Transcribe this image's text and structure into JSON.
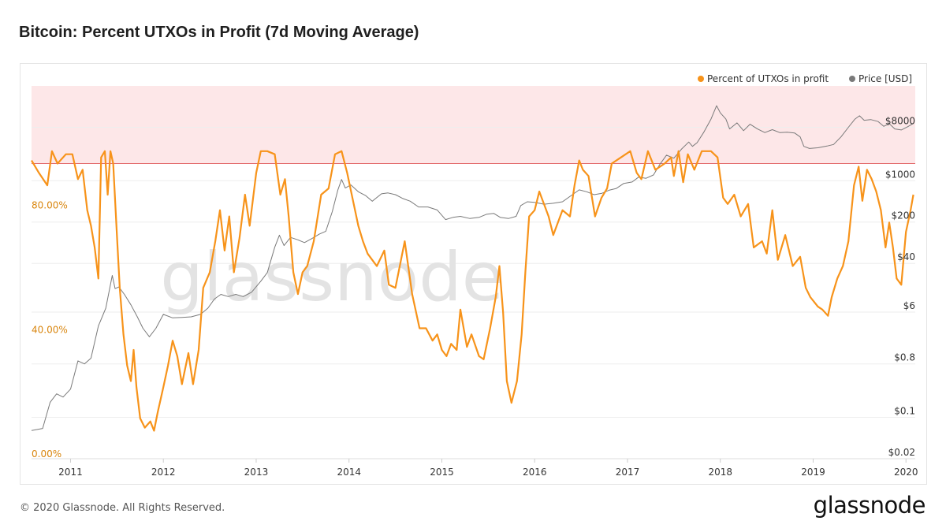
{
  "title": "Bitcoin: Percent UTXOs in Profit (7d Moving Average)",
  "footer": "© 2020 Glassnode. All Rights Reserved.",
  "brand": "glassnode",
  "watermark": "glassnode",
  "colors": {
    "profit": "#f7931a",
    "price": "#7a7a7a",
    "zone": "#fde7e8",
    "zone_line": "#e36a6a",
    "left_axis": "#d9860f",
    "grid": "#eeeeee"
  },
  "chart_data": {
    "type": "line",
    "title": "Bitcoin: Percent UTXOs in Profit (7d Moving Average)",
    "legend_position": "top-right",
    "grid": true,
    "x_ticks": [
      "2011",
      "2012",
      "2013",
      "2014",
      "2015",
      "2016",
      "2017",
      "2018",
      "2019",
      "2020"
    ],
    "x_range": [
      2010.58,
      2020.1
    ],
    "y_left": {
      "ticks": [
        "0.00%",
        "40.00%",
        "80.00%"
      ],
      "tick_values": [
        0,
        40,
        80
      ],
      "range": [
        0,
        120
      ]
    },
    "y_right": {
      "scale": "log",
      "ticks": [
        "$0.02",
        "$0.1",
        "$0.8",
        "$6",
        "$40",
        "$200",
        "$1000",
        "$8000"
      ],
      "tick_values": [
        0.02,
        0.1,
        0.8,
        6,
        40,
        200,
        1000,
        8000
      ],
      "range": [
        0.02,
        40000
      ]
    },
    "highlight_zone": {
      "axis": "left",
      "from": 95,
      "to": 120
    },
    "series": [
      {
        "name": "Percent of UTXOs in profit",
        "axis": "left",
        "points": [
          [
            2010.58,
            96
          ],
          [
            2010.66,
            92
          ],
          [
            2010.75,
            88
          ],
          [
            2010.8,
            99
          ],
          [
            2010.86,
            95
          ],
          [
            2010.95,
            98
          ],
          [
            2011.02,
            98
          ],
          [
            2011.08,
            90
          ],
          [
            2011.13,
            93
          ],
          [
            2011.18,
            80
          ],
          [
            2011.22,
            75
          ],
          [
            2011.26,
            68
          ],
          [
            2011.3,
            58
          ],
          [
            2011.33,
            97
          ],
          [
            2011.37,
            99
          ],
          [
            2011.4,
            85
          ],
          [
            2011.43,
            99
          ],
          [
            2011.46,
            95
          ],
          [
            2011.5,
            72
          ],
          [
            2011.53,
            55
          ],
          [
            2011.57,
            40
          ],
          [
            2011.61,
            30
          ],
          [
            2011.65,
            25
          ],
          [
            2011.68,
            35
          ],
          [
            2011.71,
            23
          ],
          [
            2011.75,
            13
          ],
          [
            2011.8,
            10
          ],
          [
            2011.86,
            12
          ],
          [
            2011.9,
            9
          ],
          [
            2011.94,
            15
          ],
          [
            2012.0,
            23
          ],
          [
            2012.05,
            30
          ],
          [
            2012.1,
            38
          ],
          [
            2012.15,
            33
          ],
          [
            2012.2,
            24
          ],
          [
            2012.27,
            34
          ],
          [
            2012.32,
            24
          ],
          [
            2012.38,
            35
          ],
          [
            2012.43,
            55
          ],
          [
            2012.5,
            60
          ],
          [
            2012.56,
            70
          ],
          [
            2012.61,
            80
          ],
          [
            2012.66,
            67
          ],
          [
            2012.71,
            78
          ],
          [
            2012.76,
            60
          ],
          [
            2012.82,
            71
          ],
          [
            2012.88,
            85
          ],
          [
            2012.93,
            75
          ],
          [
            2013.0,
            92
          ],
          [
            2013.05,
            99
          ],
          [
            2013.12,
            99
          ],
          [
            2013.2,
            98
          ],
          [
            2013.26,
            85
          ],
          [
            2013.31,
            90
          ],
          [
            2013.35,
            78
          ],
          [
            2013.4,
            60
          ],
          [
            2013.45,
            53
          ],
          [
            2013.5,
            60
          ],
          [
            2013.55,
            62
          ],
          [
            2013.62,
            70
          ],
          [
            2013.7,
            85
          ],
          [
            2013.78,
            87
          ],
          [
            2013.85,
            98
          ],
          [
            2013.92,
            99
          ],
          [
            2013.98,
            92
          ],
          [
            2014.03,
            85
          ],
          [
            2014.1,
            75
          ],
          [
            2014.15,
            70
          ],
          [
            2014.2,
            66
          ],
          [
            2014.3,
            62
          ],
          [
            2014.38,
            67
          ],
          [
            2014.43,
            56
          ],
          [
            2014.5,
            55
          ],
          [
            2014.6,
            70
          ],
          [
            2014.68,
            53
          ],
          [
            2014.76,
            42
          ],
          [
            2014.83,
            42
          ],
          [
            2014.9,
            38
          ],
          [
            2014.95,
            40
          ],
          [
            2015.0,
            35
          ],
          [
            2015.05,
            33
          ],
          [
            2015.1,
            37
          ],
          [
            2015.16,
            35
          ],
          [
            2015.2,
            48
          ],
          [
            2015.27,
            36
          ],
          [
            2015.32,
            40
          ],
          [
            2015.4,
            33
          ],
          [
            2015.45,
            32
          ],
          [
            2015.52,
            42
          ],
          [
            2015.58,
            52
          ],
          [
            2015.62,
            62
          ],
          [
            2015.66,
            47
          ],
          [
            2015.7,
            25
          ],
          [
            2015.75,
            18
          ],
          [
            2015.81,
            25
          ],
          [
            2015.86,
            40
          ],
          [
            2015.9,
            60
          ],
          [
            2015.94,
            78
          ],
          [
            2016.0,
            80
          ],
          [
            2016.05,
            86
          ],
          [
            2016.1,
            82
          ],
          [
            2016.15,
            78
          ],
          [
            2016.2,
            72
          ],
          [
            2016.3,
            80
          ],
          [
            2016.38,
            78
          ],
          [
            2016.43,
            88
          ],
          [
            2016.48,
            96
          ],
          [
            2016.52,
            93
          ],
          [
            2016.58,
            91
          ],
          [
            2016.65,
            78
          ],
          [
            2016.72,
            84
          ],
          [
            2016.78,
            87
          ],
          [
            2016.83,
            95
          ],
          [
            2016.93,
            97
          ],
          [
            2017.03,
            99
          ],
          [
            2017.1,
            92
          ],
          [
            2017.15,
            90
          ],
          [
            2017.22,
            99
          ],
          [
            2017.3,
            93
          ],
          [
            2017.4,
            95
          ],
          [
            2017.47,
            97
          ],
          [
            2017.5,
            91
          ],
          [
            2017.55,
            99
          ],
          [
            2017.6,
            89
          ],
          [
            2017.65,
            98
          ],
          [
            2017.72,
            93
          ],
          [
            2017.8,
            99
          ],
          [
            2017.9,
            99
          ],
          [
            2017.97,
            97
          ],
          [
            2018.03,
            84
          ],
          [
            2018.08,
            82
          ],
          [
            2018.15,
            85
          ],
          [
            2018.22,
            78
          ],
          [
            2018.3,
            82
          ],
          [
            2018.36,
            68
          ],
          [
            2018.45,
            70
          ],
          [
            2018.5,
            66
          ],
          [
            2018.56,
            80
          ],
          [
            2018.62,
            64
          ],
          [
            2018.7,
            72
          ],
          [
            2018.78,
            62
          ],
          [
            2018.86,
            65
          ],
          [
            2018.92,
            55
          ],
          [
            2018.97,
            52
          ],
          [
            2019.05,
            49
          ],
          [
            2019.1,
            48
          ],
          [
            2019.16,
            46
          ],
          [
            2019.2,
            52
          ],
          [
            2019.26,
            58
          ],
          [
            2019.32,
            62
          ],
          [
            2019.38,
            70
          ],
          [
            2019.44,
            88
          ],
          [
            2019.49,
            94
          ],
          [
            2019.53,
            83
          ],
          [
            2019.58,
            93
          ],
          [
            2019.63,
            90
          ],
          [
            2019.68,
            86
          ],
          [
            2019.73,
            80
          ],
          [
            2019.78,
            68
          ],
          [
            2019.82,
            76
          ],
          [
            2019.86,
            68
          ],
          [
            2019.9,
            58
          ],
          [
            2019.95,
            56
          ],
          [
            2020.0,
            73
          ],
          [
            2020.05,
            80
          ],
          [
            2020.08,
            85
          ]
        ]
      },
      {
        "name": "Price [USD]",
        "axis": "right",
        "points": [
          [
            2010.58,
            0.06
          ],
          [
            2010.7,
            0.065
          ],
          [
            2010.78,
            0.18
          ],
          [
            2010.85,
            0.25
          ],
          [
            2010.92,
            0.22
          ],
          [
            2011.0,
            0.3
          ],
          [
            2011.08,
            0.9
          ],
          [
            2011.15,
            0.8
          ],
          [
            2011.22,
            1.0
          ],
          [
            2011.3,
            3.5
          ],
          [
            2011.38,
            7.0
          ],
          [
            2011.45,
            25
          ],
          [
            2011.48,
            15
          ],
          [
            2011.52,
            16
          ],
          [
            2011.58,
            12
          ],
          [
            2011.65,
            8
          ],
          [
            2011.72,
            5
          ],
          [
            2011.78,
            3.2
          ],
          [
            2011.85,
            2.3
          ],
          [
            2011.92,
            3.2
          ],
          [
            2012.0,
            5.5
          ],
          [
            2012.1,
            4.8
          ],
          [
            2012.2,
            4.9
          ],
          [
            2012.3,
            5.0
          ],
          [
            2012.4,
            5.5
          ],
          [
            2012.48,
            7.0
          ],
          [
            2012.55,
            10
          ],
          [
            2012.62,
            12
          ],
          [
            2012.7,
            11
          ],
          [
            2012.78,
            12
          ],
          [
            2012.86,
            11
          ],
          [
            2012.95,
            13
          ],
          [
            2013.05,
            20
          ],
          [
            2013.12,
            28
          ],
          [
            2013.2,
            75
          ],
          [
            2013.25,
            120
          ],
          [
            2013.3,
            80
          ],
          [
            2013.37,
            110
          ],
          [
            2013.45,
            100
          ],
          [
            2013.52,
            90
          ],
          [
            2013.6,
            105
          ],
          [
            2013.68,
            125
          ],
          [
            2013.75,
            140
          ],
          [
            2013.82,
            300
          ],
          [
            2013.88,
            700
          ],
          [
            2013.92,
            1050
          ],
          [
            2013.96,
            750
          ],
          [
            2014.02,
            850
          ],
          [
            2014.1,
            650
          ],
          [
            2014.18,
            560
          ],
          [
            2014.25,
            450
          ],
          [
            2014.35,
            600
          ],
          [
            2014.42,
            620
          ],
          [
            2014.5,
            580
          ],
          [
            2014.58,
            500
          ],
          [
            2014.66,
            450
          ],
          [
            2014.75,
            360
          ],
          [
            2014.85,
            360
          ],
          [
            2014.95,
            320
          ],
          [
            2015.04,
            220
          ],
          [
            2015.12,
            240
          ],
          [
            2015.2,
            250
          ],
          [
            2015.3,
            230
          ],
          [
            2015.4,
            240
          ],
          [
            2015.48,
            270
          ],
          [
            2015.56,
            280
          ],
          [
            2015.63,
            240
          ],
          [
            2015.72,
            230
          ],
          [
            2015.8,
            250
          ],
          [
            2015.85,
            380
          ],
          [
            2015.92,
            440
          ],
          [
            2016.0,
            430
          ],
          [
            2016.1,
            400
          ],
          [
            2016.2,
            415
          ],
          [
            2016.3,
            440
          ],
          [
            2016.42,
            600
          ],
          [
            2016.48,
            700
          ],
          [
            2016.56,
            650
          ],
          [
            2016.64,
            580
          ],
          [
            2016.72,
            610
          ],
          [
            2016.8,
            690
          ],
          [
            2016.88,
            740
          ],
          [
            2016.96,
            900
          ],
          [
            2017.05,
            950
          ],
          [
            2017.12,
            1150
          ],
          [
            2017.2,
            1100
          ],
          [
            2017.28,
            1250
          ],
          [
            2017.35,
            1900
          ],
          [
            2017.42,
            2700
          ],
          [
            2017.5,
            2400
          ],
          [
            2017.58,
            3400
          ],
          [
            2017.66,
            4500
          ],
          [
            2017.7,
            3800
          ],
          [
            2017.75,
            4400
          ],
          [
            2017.82,
            6500
          ],
          [
            2017.9,
            11000
          ],
          [
            2017.96,
            18500
          ],
          [
            2018.0,
            14000
          ],
          [
            2018.06,
            11000
          ],
          [
            2018.1,
            7500
          ],
          [
            2018.18,
            9500
          ],
          [
            2018.25,
            7000
          ],
          [
            2018.32,
            9000
          ],
          [
            2018.4,
            7500
          ],
          [
            2018.48,
            6500
          ],
          [
            2018.56,
            7300
          ],
          [
            2018.64,
            6500
          ],
          [
            2018.72,
            6600
          ],
          [
            2018.8,
            6400
          ],
          [
            2018.86,
            5500
          ],
          [
            2018.9,
            3800
          ],
          [
            2018.96,
            3500
          ],
          [
            2019.05,
            3600
          ],
          [
            2019.15,
            3850
          ],
          [
            2019.22,
            4100
          ],
          [
            2019.3,
            5500
          ],
          [
            2019.38,
            8000
          ],
          [
            2019.45,
            11000
          ],
          [
            2019.5,
            12500
          ],
          [
            2019.55,
            10500
          ],
          [
            2019.62,
            10800
          ],
          [
            2019.7,
            10000
          ],
          [
            2019.76,
            8300
          ],
          [
            2019.82,
            9200
          ],
          [
            2019.88,
            7500
          ],
          [
            2019.95,
            7200
          ],
          [
            2020.02,
            8200
          ],
          [
            2020.08,
            9300
          ]
        ]
      }
    ]
  }
}
